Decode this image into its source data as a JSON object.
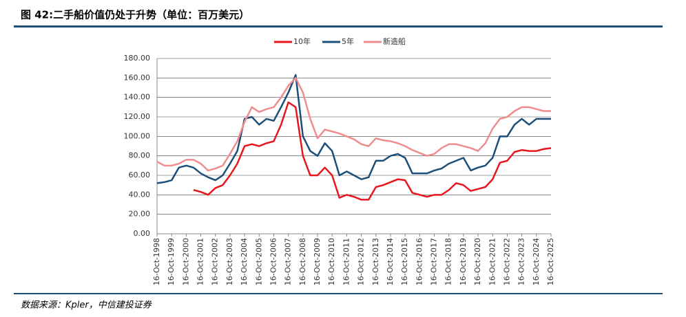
{
  "chart_data": {
    "type": "line",
    "title": "图 42:二手船价值仍处于升势（单位：百万美元）",
    "source": "数据来源：Kpler，中信建投证券",
    "x": [
      1998.79,
      1999.29,
      1999.79,
      2000.29,
      2000.79,
      2001.29,
      2001.79,
      2002.29,
      2002.79,
      2003.29,
      2003.79,
      2004.29,
      2004.79,
      2005.29,
      2005.79,
      2006.29,
      2006.79,
      2007.29,
      2007.79,
      2008.29,
      2008.79,
      2009.29,
      2009.79,
      2010.29,
      2010.79,
      2011.29,
      2011.79,
      2012.29,
      2012.79,
      2013.29,
      2013.79,
      2014.29,
      2014.79,
      2015.29,
      2015.79,
      2016.29,
      2016.79,
      2017.29,
      2017.79,
      2018.29,
      2018.79,
      2019.29,
      2019.79,
      2020.29,
      2020.79,
      2021.29,
      2021.79,
      2022.29,
      2022.79,
      2023.29,
      2023.79,
      2024.29,
      2024.79,
      2025.29,
      2025.79
    ],
    "series": [
      {
        "name": "10年",
        "color": "#e8161c",
        "values": [
          null,
          null,
          null,
          null,
          null,
          45,
          43,
          40,
          47,
          50,
          60,
          72,
          90,
          92,
          90,
          93,
          95,
          112,
          135,
          130,
          80,
          60,
          60,
          68,
          60,
          37,
          40,
          38,
          35,
          35,
          48,
          50,
          53,
          56,
          55,
          42,
          40,
          38,
          40,
          40,
          45,
          52,
          50,
          44,
          46,
          48,
          56,
          73,
          75,
          84,
          86,
          85,
          85,
          87,
          88
        ]
      },
      {
        "name": "5年",
        "color": "#1b4e78",
        "values": [
          52,
          53,
          55,
          68,
          70,
          68,
          62,
          58,
          55,
          60,
          72,
          85,
          118,
          120,
          112,
          118,
          116,
          130,
          145,
          163,
          100,
          85,
          80,
          93,
          85,
          60,
          64,
          60,
          56,
          58,
          75,
          75,
          80,
          82,
          78,
          62,
          62,
          62,
          65,
          67,
          72,
          75,
          78,
          65,
          68,
          70,
          78,
          100,
          100,
          112,
          118,
          112,
          118,
          118,
          118
        ]
      },
      {
        "name": "新造船",
        "color": "#f08c8e",
        "values": [
          74,
          70,
          70,
          72,
          76,
          76,
          72,
          65,
          67,
          70,
          82,
          95,
          115,
          130,
          125,
          128,
          130,
          140,
          152,
          160,
          145,
          118,
          98,
          107,
          105,
          103,
          100,
          97,
          92,
          90,
          98,
          96,
          95,
          93,
          90,
          86,
          83,
          80,
          82,
          88,
          92,
          92,
          90,
          88,
          85,
          93,
          108,
          118,
          120,
          126,
          130,
          130,
          128,
          126,
          126
        ]
      }
    ],
    "xlim": [
      1998.79,
      2025.79
    ],
    "xticks": [
      {
        "value": 1998.79,
        "label": "16-Oct-1998"
      },
      {
        "value": 1999.79,
        "label": "16-Oct-1999"
      },
      {
        "value": 2000.79,
        "label": "16-Oct-2000"
      },
      {
        "value": 2001.79,
        "label": "16-Oct-2001"
      },
      {
        "value": 2002.79,
        "label": "16-Oct-2002"
      },
      {
        "value": 2003.79,
        "label": "16-Oct-2003"
      },
      {
        "value": 2004.79,
        "label": "16-Oct-2004"
      },
      {
        "value": 2005.79,
        "label": "16-Oct-2005"
      },
      {
        "value": 2006.79,
        "label": "16-Oct-2006"
      },
      {
        "value": 2007.79,
        "label": "16-Oct-2007"
      },
      {
        "value": 2008.79,
        "label": "16-Oct-2008"
      },
      {
        "value": 2009.79,
        "label": "16-Oct-2009"
      },
      {
        "value": 2010.79,
        "label": "16-Oct-2010"
      },
      {
        "value": 2011.79,
        "label": "16-Oct-2011"
      },
      {
        "value": 2012.79,
        "label": "16-Oct-2012"
      },
      {
        "value": 2013.79,
        "label": "16-Oct-2013"
      },
      {
        "value": 2014.79,
        "label": "16-Oct-2014"
      },
      {
        "value": 2015.79,
        "label": "16-Oct-2015"
      },
      {
        "value": 2016.79,
        "label": "16-Oct-2016"
      },
      {
        "value": 2017.79,
        "label": "16-Oct-2017"
      },
      {
        "value": 2018.79,
        "label": "16-Oct-2018"
      },
      {
        "value": 2019.79,
        "label": "16-Oct-2019"
      },
      {
        "value": 2020.79,
        "label": "16-Oct-2020"
      },
      {
        "value": 2021.79,
        "label": "16-Oct-2021"
      },
      {
        "value": 2022.79,
        "label": "16-Oct-2022"
      },
      {
        "value": 2023.79,
        "label": "16-Oct-2023"
      },
      {
        "value": 2024.79,
        "label": "16-Oct-2024"
      },
      {
        "value": 2025.79,
        "label": "16-Oct-2025"
      }
    ],
    "ylim": [
      0,
      180
    ],
    "yticks": [
      {
        "value": 0,
        "label": "0.00"
      },
      {
        "value": 20,
        "label": "20.00"
      },
      {
        "value": 40,
        "label": "40.00"
      },
      {
        "value": 60,
        "label": "60.00"
      },
      {
        "value": 80,
        "label": "80.00"
      },
      {
        "value": 100,
        "label": "100.00"
      },
      {
        "value": 120,
        "label": "120.00"
      },
      {
        "value": 140,
        "label": "140.00"
      },
      {
        "value": 160,
        "label": "160.00"
      },
      {
        "value": 180,
        "label": "180.00"
      }
    ],
    "grid": true,
    "legend": "top"
  }
}
